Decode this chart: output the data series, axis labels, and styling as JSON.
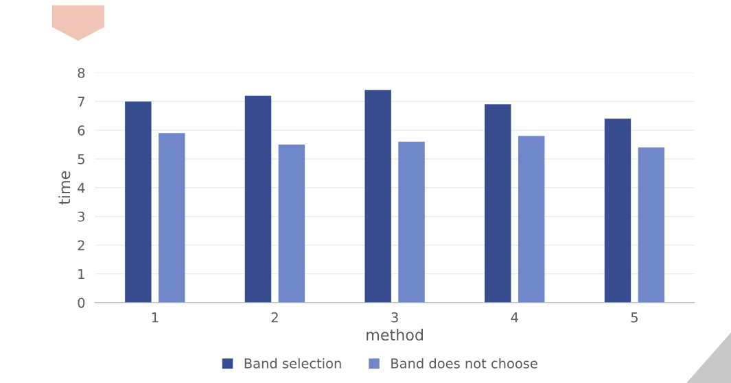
{
  "chart_data": {
    "type": "bar",
    "xlabel": "method",
    "ylabel": "time",
    "categories": [
      "1",
      "2",
      "3",
      "4",
      "5"
    ],
    "series": [
      {
        "name": "Band selection",
        "color": "#374c8f",
        "values": [
          7.0,
          7.2,
          7.4,
          6.9,
          6.4
        ]
      },
      {
        "name": "Band does not choose",
        "color": "#6f86c9",
        "values": [
          5.9,
          5.5,
          5.6,
          5.8,
          5.4
        ]
      }
    ],
    "ylim": [
      0,
      8
    ],
    "yticks": [
      0,
      1,
      2,
      3,
      4,
      5,
      6,
      7,
      8
    ],
    "grid": "y",
    "legend": "bottom"
  }
}
